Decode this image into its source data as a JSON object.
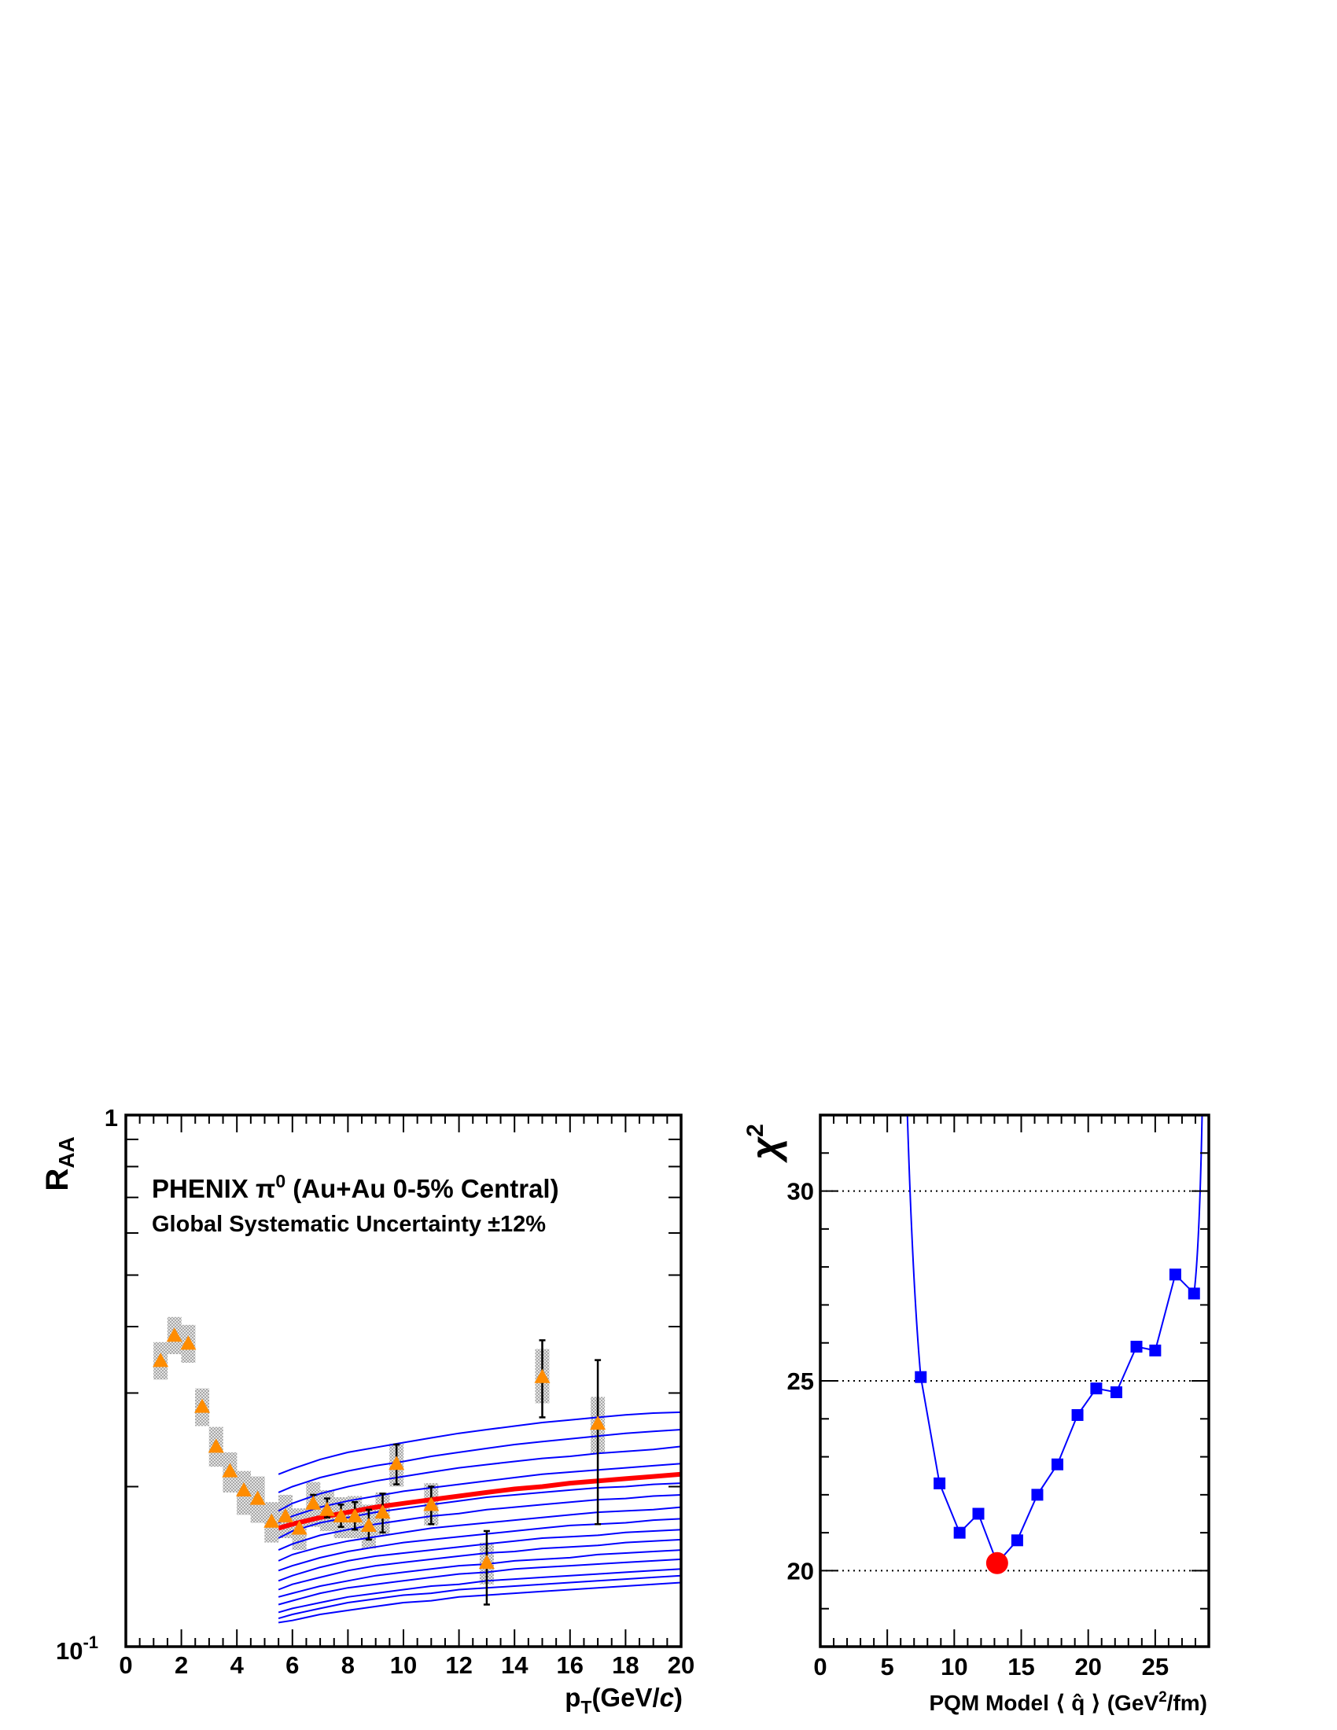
{
  "colors": {
    "frame": "#000000",
    "data_marker": "#ff8c00",
    "sys_box": "#c8c8c8",
    "model_lines": "#0000ff",
    "best_fit": "#ff0000",
    "chi2_points": "#0000ff",
    "chi2_min": "#ff0000",
    "grid": "#000000"
  },
  "chart_data": [
    {
      "type": "line",
      "panel": "left",
      "ylabel": "R",
      "ylabel_sub": "AA",
      "xlabel": "p",
      "xlabel_sub": "T",
      "xlabel_unit": "(GeV/",
      "xlabel_unit_c": "c",
      "xlabel_unit_close": ")",
      "annotation_line1_a": "PHENIX π",
      "annotation_line1_sup": "0",
      "annotation_line1_b": " (Au+Au 0-5% Central)",
      "annotation_line2": "Global Systematic Uncertainty ±12%",
      "xlim": [
        0,
        20
      ],
      "ylim": [
        0.1,
        1
      ],
      "y_log": true,
      "grid": false,
      "x_ticks": [
        0,
        2,
        4,
        6,
        8,
        10,
        12,
        14,
        16,
        18,
        20
      ],
      "x_tick_labels": [
        "0",
        "2",
        "4",
        "6",
        "8",
        "10",
        "12",
        "14",
        "16",
        "18",
        "20"
      ],
      "y_tick_label_top": "1",
      "y_tick_label_bottom_base": "10",
      "y_tick_label_bottom_exp": "-1",
      "data": {
        "name": "PHENIX π0",
        "x": [
          1.25,
          1.75,
          2.25,
          2.75,
          3.25,
          3.75,
          4.25,
          4.75,
          5.25,
          5.75,
          6.25,
          6.75,
          7.25,
          7.75,
          8.25,
          8.75,
          9.25,
          9.75,
          11.0,
          13.0,
          15.0,
          17.0
        ],
        "y": [
          0.345,
          0.385,
          0.372,
          0.283,
          0.238,
          0.214,
          0.197,
          0.19,
          0.172,
          0.176,
          0.167,
          0.186,
          0.181,
          0.176,
          0.176,
          0.169,
          0.179,
          0.221,
          0.185,
          0.144,
          0.322,
          0.263
        ],
        "stat_lo": [
          null,
          null,
          null,
          null,
          null,
          null,
          null,
          null,
          null,
          null,
          null,
          0.182,
          0.175,
          0.168,
          0.166,
          0.159,
          0.164,
          0.202,
          0.17,
          0.12,
          0.27,
          0.17
        ],
        "stat_hi": [
          null,
          null,
          null,
          null,
          null,
          null,
          null,
          null,
          null,
          null,
          null,
          0.193,
          0.19,
          0.185,
          0.187,
          0.181,
          0.194,
          0.24,
          0.2,
          0.165,
          0.377,
          0.346
        ],
        "sys_lo": [
          0.318,
          0.355,
          0.342,
          0.26,
          0.218,
          0.195,
          0.177,
          0.171,
          0.157,
          0.16,
          0.152,
          0.168,
          0.165,
          0.16,
          0.16,
          0.153,
          0.162,
          0.2,
          0.169,
          0.131,
          0.287,
          0.231
        ],
        "sys_hi": [
          0.374,
          0.417,
          0.403,
          0.306,
          0.259,
          0.232,
          0.214,
          0.209,
          0.187,
          0.193,
          0.182,
          0.204,
          0.197,
          0.191,
          0.192,
          0.185,
          0.195,
          0.241,
          0.203,
          0.157,
          0.363,
          0.295
        ]
      },
      "model_x": [
        5.5,
        6,
        7,
        8,
        9,
        10,
        11,
        12,
        13,
        14,
        15,
        16,
        17,
        18,
        19,
        20
      ],
      "model_curves": [
        [
          0.211,
          0.216,
          0.225,
          0.232,
          0.237,
          0.242,
          0.247,
          0.252,
          0.256,
          0.26,
          0.264,
          0.267,
          0.27,
          0.273,
          0.275,
          0.276
        ],
        [
          0.195,
          0.2,
          0.208,
          0.214,
          0.219,
          0.223,
          0.228,
          0.232,
          0.236,
          0.24,
          0.243,
          0.246,
          0.249,
          0.252,
          0.254,
          0.256
        ],
        [
          0.18,
          0.186,
          0.194,
          0.2,
          0.205,
          0.209,
          0.213,
          0.217,
          0.22,
          0.223,
          0.226,
          0.228,
          0.231,
          0.233,
          0.235,
          0.238
        ],
        [
          0.171,
          0.176,
          0.183,
          0.188,
          0.192,
          0.196,
          0.199,
          0.202,
          0.205,
          0.208,
          0.211,
          0.213,
          0.215,
          0.217,
          0.219,
          0.221
        ],
        [
          0.16,
          0.165,
          0.171,
          0.175,
          0.179,
          0.182,
          0.185,
          0.188,
          0.191,
          0.193,
          0.195,
          0.197,
          0.199,
          0.2,
          0.202,
          0.203
        ],
        [
          0.152,
          0.156,
          0.162,
          0.166,
          0.17,
          0.173,
          0.176,
          0.178,
          0.181,
          0.183,
          0.185,
          0.187,
          0.189,
          0.19,
          0.192,
          0.193
        ],
        [
          0.145,
          0.149,
          0.154,
          0.158,
          0.161,
          0.164,
          0.167,
          0.169,
          0.171,
          0.173,
          0.175,
          0.177,
          0.179,
          0.18,
          0.181,
          0.183
        ],
        [
          0.139,
          0.142,
          0.147,
          0.151,
          0.154,
          0.157,
          0.159,
          0.161,
          0.163,
          0.165,
          0.167,
          0.169,
          0.17,
          0.171,
          0.173,
          0.174
        ],
        [
          0.133,
          0.136,
          0.141,
          0.145,
          0.148,
          0.15,
          0.152,
          0.154,
          0.156,
          0.158,
          0.16,
          0.161,
          0.162,
          0.164,
          0.165,
          0.166
        ],
        [
          0.128,
          0.131,
          0.135,
          0.139,
          0.142,
          0.144,
          0.146,
          0.148,
          0.15,
          0.151,
          0.153,
          0.154,
          0.155,
          0.157,
          0.158,
          0.159
        ],
        [
          0.124,
          0.126,
          0.13,
          0.133,
          0.136,
          0.138,
          0.14,
          0.142,
          0.143,
          0.145,
          0.146,
          0.147,
          0.149,
          0.15,
          0.151,
          0.152
        ],
        [
          0.12,
          0.122,
          0.126,
          0.129,
          0.131,
          0.133,
          0.135,
          0.137,
          0.138,
          0.14,
          0.141,
          0.142,
          0.143,
          0.144,
          0.145,
          0.146
        ],
        [
          0.116,
          0.118,
          0.121,
          0.124,
          0.126,
          0.128,
          0.13,
          0.131,
          0.133,
          0.134,
          0.135,
          0.136,
          0.137,
          0.138,
          0.139,
          0.14
        ],
        [
          0.113,
          0.115,
          0.118,
          0.121,
          0.123,
          0.125,
          0.126,
          0.128,
          0.129,
          0.13,
          0.131,
          0.132,
          0.133,
          0.134,
          0.135,
          0.136
        ],
        [
          0.111,
          0.112,
          0.115,
          0.117,
          0.119,
          0.121,
          0.122,
          0.124,
          0.125,
          0.126,
          0.127,
          0.128,
          0.129,
          0.13,
          0.131,
          0.132
        ]
      ],
      "best_fit": [
        0.167,
        0.17,
        0.175,
        0.179,
        0.183,
        0.186,
        0.189,
        0.192,
        0.195,
        0.198,
        0.2,
        0.203,
        0.205,
        0.207,
        0.209,
        0.211
      ]
    },
    {
      "type": "scatter",
      "panel": "right",
      "ylabel": "χ",
      "ylabel_sup": "2",
      "xlabel_a": "PQM Model ⟨ ",
      "xlabel_q": "q̂",
      "xlabel_b": " ⟩ (GeV",
      "xlabel_sup": "2",
      "xlabel_c": "/fm)",
      "xlim": [
        0,
        29
      ],
      "ylim": [
        18,
        32
      ],
      "grid": "dotted horizontal at 20, 25, 30",
      "grid_y": [
        20,
        25,
        30
      ],
      "x_ticks": [
        0,
        5,
        10,
        15,
        20,
        25
      ],
      "x_tick_labels": [
        "0",
        "5",
        "10",
        "15",
        "20",
        "25"
      ],
      "y_ticks": [
        20,
        25,
        30
      ],
      "y_tick_labels": [
        "20",
        "25",
        "30"
      ],
      "x": [
        7.5,
        8.9,
        10.4,
        11.8,
        14.7,
        16.2,
        17.7,
        19.2,
        20.6,
        22.1,
        23.6,
        25.0,
        26.5,
        27.9
      ],
      "y": [
        25.1,
        22.3,
        21.0,
        21.5,
        20.8,
        22.0,
        22.8,
        24.1,
        24.8,
        24.7,
        25.9,
        25.8,
        27.8,
        27.3
      ],
      "minimum": {
        "x": 13.2,
        "y": 20.2
      },
      "left_curve": {
        "x": [
          6.5,
          7.5
        ],
        "y": [
          32,
          25.1
        ]
      },
      "right_curve": {
        "x": [
          27.9,
          28.5
        ],
        "y": [
          27.3,
          32
        ]
      }
    }
  ]
}
